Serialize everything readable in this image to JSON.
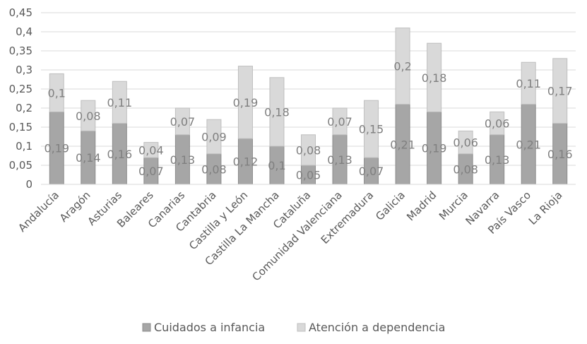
{
  "chart_data": {
    "type": "bar",
    "stacked": true,
    "categories": [
      "Andalucía",
      "Aragón",
      "Asturias",
      "Baleares",
      "Canarias",
      "Cantabria",
      "Castilla y León",
      "Castilla La Mancha",
      "Cataluña",
      "Comunidad Valenciana",
      "Extremadura",
      "Galicia",
      "Madrid",
      "Murcia",
      "Navarra",
      "País Vasco",
      "La Rioja"
    ],
    "series": [
      {
        "name": "Cuidados a infancia",
        "color": "#a6a6a6",
        "values": [
          0.19,
          0.14,
          0.16,
          0.07,
          0.13,
          0.08,
          0.12,
          0.1,
          0.05,
          0.13,
          0.07,
          0.21,
          0.19,
          0.08,
          0.13,
          0.21,
          0.16
        ],
        "labels": [
          "0,19",
          "0,14",
          "0,16",
          "0,07",
          "0,13",
          "0,08",
          "0,12",
          "0,1",
          "0,05",
          "0,13",
          "0,07",
          "0,21",
          "0,19",
          "0,08",
          "0,13",
          "0,21",
          "0,16"
        ]
      },
      {
        "name": "Atención a dependencia",
        "color": "#d9d9d9",
        "values": [
          0.1,
          0.08,
          0.11,
          0.04,
          0.07,
          0.09,
          0.19,
          0.18,
          0.08,
          0.07,
          0.15,
          0.2,
          0.18,
          0.06,
          0.06,
          0.11,
          0.17
        ],
        "labels": [
          "0,1",
          "0,08",
          "0,11",
          "0,04",
          "0,07",
          "0,09",
          "0,19",
          "0,18",
          "0,08",
          "0,07",
          "0,15",
          "0,2",
          "0,18",
          "0,06",
          "0,06",
          "0,11",
          "0,17"
        ]
      }
    ],
    "ylim": [
      0,
      0.45
    ],
    "yticks": [
      "0",
      "0,05",
      "0,1",
      "0,15",
      "0,2",
      "0,25",
      "0,3",
      "0,35",
      "0,4",
      "0,45"
    ],
    "grid": true,
    "legend": "bottom",
    "title": "",
    "xlabel": "",
    "ylabel": ""
  }
}
